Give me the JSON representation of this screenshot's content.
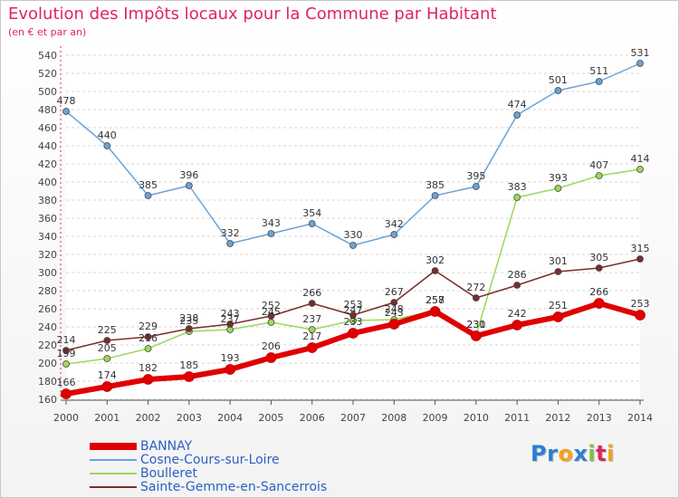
{
  "header": {
    "title": "Evolution des Impôts locaux pour la Commune par Habitant",
    "subtitle": "(en € et par an)"
  },
  "logo": {
    "text": "Proxiti",
    "letters": [
      {
        "ch": "P",
        "color": "#2a7fd4"
      },
      {
        "ch": "r",
        "color": "#2a7fd4"
      },
      {
        "ch": "o",
        "color": "#f2a21b"
      },
      {
        "ch": "x",
        "color": "#2a7fd4"
      },
      {
        "ch": "i",
        "color": "#7dc242"
      },
      {
        "ch": "t",
        "color": "#e0245e"
      },
      {
        "ch": "i",
        "color": "#f2a21b"
      }
    ]
  },
  "chart_data": {
    "type": "line",
    "title": "Evolution des Impôts locaux pour la Commune par Habitant",
    "subtitle": "(en € et par an)",
    "x": [
      2000,
      2001,
      2002,
      2003,
      2004,
      2005,
      2006,
      2007,
      2008,
      2009,
      2010,
      2011,
      2012,
      2013,
      2014
    ],
    "ylim": [
      160,
      540
    ],
    "yticks": [
      160,
      180,
      200,
      220,
      240,
      260,
      280,
      300,
      320,
      340,
      360,
      380,
      400,
      420,
      440,
      460,
      480,
      500,
      520,
      540
    ],
    "grid": "horizontal",
    "legend_position": "bottom-left",
    "series": [
      {
        "name": "BANNAY",
        "color": "#e00000",
        "values": [
          166,
          174,
          182,
          185,
          193,
          206,
          217,
          233,
          243,
          257,
          230,
          242,
          251,
          266,
          253
        ],
        "labels": [
          "166",
          "174",
          "182",
          "185",
          "193",
          "206",
          "217",
          "233",
          "243",
          "257",
          "230",
          "242",
          "251",
          "266",
          "253"
        ]
      },
      {
        "name": "Cosne-Cours-sur-Loire",
        "color": "#6ba3d6",
        "values": [
          478,
          440,
          385,
          396,
          332,
          343,
          354,
          330,
          342,
          385,
          395,
          474,
          501,
          511,
          531
        ],
        "labels": [
          "478",
          "440",
          "385",
          "396",
          "332",
          "343",
          "354",
          "330",
          "342",
          "385",
          "395",
          "474",
          "501",
          "511",
          "531"
        ]
      },
      {
        "name": "Boulleret",
        "color": "#9ad95a",
        "values": [
          199,
          205,
          216,
          235,
          237,
          245,
          237,
          247,
          248,
          258,
          231,
          383,
          393,
          407,
          414
        ],
        "labels": [
          "199",
          "205",
          "216",
          "235",
          "237",
          "245",
          "237",
          "247",
          "248",
          "258",
          "231",
          "383",
          "393",
          "407",
          "414"
        ]
      },
      {
        "name": "Sainte-Gemme-en-Sancerrois",
        "color": "#7a2d2d",
        "values": [
          214,
          225,
          229,
          238,
          243,
          252,
          266,
          253,
          267,
          302,
          272,
          286,
          301,
          305,
          315
        ],
        "labels": [
          "214",
          "225",
          "229",
          "238",
          "243",
          "252",
          "266",
          "253",
          "267",
          "302",
          "272",
          "286",
          "301",
          "305",
          "315"
        ]
      }
    ]
  }
}
